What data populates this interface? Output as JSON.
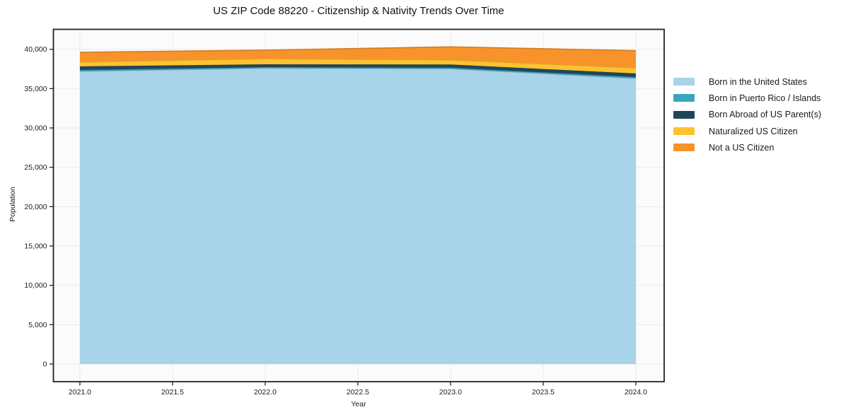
{
  "chart_data": {
    "type": "area",
    "stacked": true,
    "title": "US ZIP Code 88220 - Citizenship & Nativity Trends Over Time",
    "xlabel": "Year",
    "ylabel": "Population",
    "x": [
      2021,
      2022,
      2023,
      2024
    ],
    "series": [
      {
        "name": "Born in the United States",
        "color": "#a8d3e8",
        "values": [
          37190,
          37590,
          37515,
          36290
        ]
      },
      {
        "name": "Born in Puerto Rico / Islands",
        "color": "#3aa5bf",
        "values": [
          180,
          140,
          150,
          180
        ]
      },
      {
        "name": "Born Abroad of US Parent(s)",
        "color": "#21465a",
        "values": [
          450,
          360,
          395,
          450
        ]
      },
      {
        "name": "Naturalized US Citizen",
        "color": "#fcc230",
        "values": [
          565,
          720,
          595,
          720
        ]
      },
      {
        "name": "Not a US Citizen",
        "color": "#f7932a",
        "values": [
          1230,
          1080,
          1655,
          2185
        ]
      }
    ],
    "totals": [
      39615,
      39890,
      40310,
      39825
    ],
    "xticks": [
      2021.0,
      2021.5,
      2022.0,
      2022.5,
      2023.0,
      2023.5,
      2024.0
    ],
    "xtick_labels": [
      "2021.0",
      "2021.5",
      "2022.0",
      "2022.5",
      "2023.0",
      "2023.5",
      "2024.0"
    ],
    "yticks": [
      0,
      5000,
      10000,
      15000,
      20000,
      25000,
      30000,
      35000,
      40000
    ],
    "ytick_labels": [
      "0",
      "5,000",
      "10,000",
      "15,000",
      "20,000",
      "25,000",
      "30,000",
      "35,000",
      "40,000"
    ],
    "xlim": [
      2020.857,
      2024.153
    ],
    "ylim": [
      -2245,
      42533
    ],
    "grid": true,
    "legend_position": "right-outside",
    "colors": {
      "plot_background": "#fbfbfb",
      "gridline": "#eaeaea",
      "frame": "#222222",
      "text": "#1a1a1a"
    }
  }
}
